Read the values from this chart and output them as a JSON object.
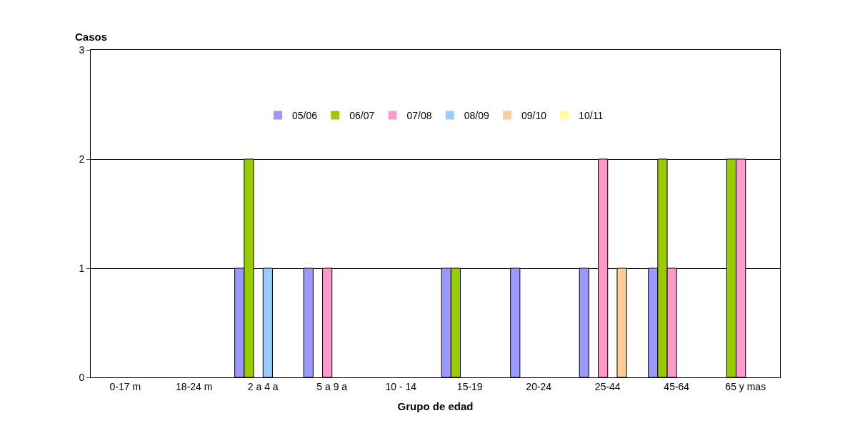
{
  "chart_data": {
    "type": "bar",
    "xlabel": "Grupo de edad",
    "ylabel": "Casos",
    "categories": [
      "0-17 m",
      "18-24 m",
      "2 a 4 a",
      "5 a 9 a",
      "10 - 14",
      "15-19",
      "20-24",
      "25-44",
      "45-64",
      "65 y mas"
    ],
    "series": [
      {
        "name": "05/06",
        "color": "#9999ff",
        "values": [
          0,
          0,
          1,
          1,
          0,
          1,
          1,
          1,
          1,
          0
        ]
      },
      {
        "name": "06/07",
        "color": "#99cc00",
        "values": [
          0,
          0,
          2,
          0,
          0,
          1,
          0,
          0,
          2,
          2
        ]
      },
      {
        "name": "07/08",
        "color": "#ff99cc",
        "values": [
          0,
          0,
          0,
          1,
          0,
          0,
          0,
          2,
          1,
          2
        ]
      },
      {
        "name": "08/09",
        "color": "#99ccff",
        "values": [
          0,
          0,
          1,
          0,
          0,
          0,
          0,
          0,
          0,
          0
        ]
      },
      {
        "name": "09/10",
        "color": "#ffcc99",
        "values": [
          0,
          0,
          0,
          0,
          0,
          0,
          0,
          1,
          0,
          0
        ]
      },
      {
        "name": "10/11",
        "color": "#ffff99",
        "values": [
          0,
          0,
          0,
          0,
          0,
          0,
          0,
          0,
          0,
          0
        ]
      }
    ],
    "ylim": [
      0,
      3
    ],
    "yticks": [
      0,
      1,
      2,
      3
    ],
    "grid": "y",
    "legend": "top"
  }
}
